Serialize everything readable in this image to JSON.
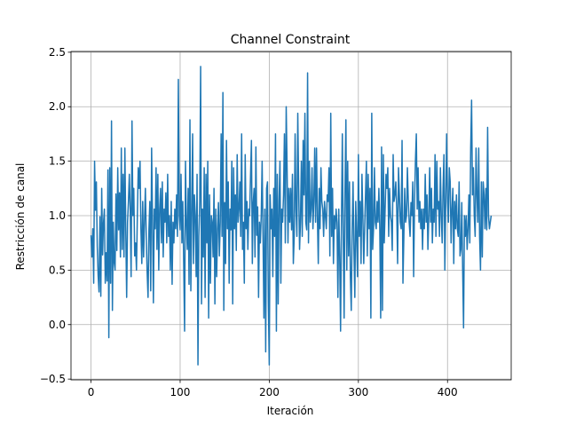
{
  "chart_data": {
    "type": "line",
    "title": "Channel Constraint",
    "x_label": "Iteración",
    "y_label": "Restricción de canal",
    "x": [
      0,
      1,
      2,
      3,
      4,
      5,
      6,
      7,
      8,
      9,
      10,
      11,
      12,
      13,
      14,
      15,
      16,
      17,
      18,
      19,
      20,
      21,
      22,
      23,
      24,
      25,
      26,
      27,
      28,
      29,
      30,
      31,
      32,
      33,
      34,
      35,
      36,
      37,
      38,
      39,
      40,
      41,
      42,
      43,
      44,
      45,
      46,
      47,
      48,
      49,
      50,
      51,
      52,
      53,
      54,
      55,
      56,
      57,
      58,
      59,
      60,
      61,
      62,
      63,
      64,
      65,
      66,
      67,
      68,
      69,
      70,
      71,
      72,
      73,
      74,
      75,
      76,
      77,
      78,
      79,
      80,
      81,
      82,
      83,
      84,
      85,
      86,
      87,
      88,
      89,
      90,
      91,
      92,
      93,
      94,
      95,
      96,
      97,
      98,
      99,
      100,
      101,
      102,
      103,
      104,
      105,
      106,
      107,
      108,
      109,
      110,
      111,
      112,
      113,
      114,
      115,
      116,
      117,
      118,
      119,
      120,
      121,
      122,
      123,
      124,
      125,
      126,
      127,
      128,
      129,
      130,
      131,
      132,
      133,
      134,
      135,
      136,
      137,
      138,
      139,
      140,
      141,
      142,
      143,
      144,
      145,
      146,
      147,
      148,
      149,
      150,
      151,
      152,
      153,
      154,
      155,
      156,
      157,
      158,
      159,
      160,
      161,
      162,
      163,
      164,
      165,
      166,
      167,
      168,
      169,
      170,
      171,
      172,
      173,
      174,
      175,
      176,
      177,
      178,
      179,
      180,
      181,
      182,
      183,
      184,
      185,
      186,
      187,
      188,
      189,
      190,
      191,
      192,
      193,
      194,
      195,
      196,
      197,
      198,
      199,
      200,
      201,
      202,
      203,
      204,
      205,
      206,
      207,
      208,
      209,
      210,
      211,
      212,
      213,
      214,
      215,
      216,
      217,
      218,
      219,
      220,
      221,
      222,
      223,
      224,
      225,
      226,
      227,
      228,
      229,
      230,
      231,
      232,
      233,
      234,
      235,
      236,
      237,
      238,
      239,
      240,
      241,
      242,
      243,
      244,
      245,
      246,
      247,
      248,
      249,
      250,
      251,
      252,
      253,
      254,
      255,
      256,
      257,
      258,
      259,
      260,
      261,
      262,
      263,
      264,
      265,
      266,
      267,
      268,
      269,
      270,
      271,
      272,
      273,
      274,
      275,
      276,
      277,
      278,
      279,
      280,
      281,
      282,
      283,
      284,
      285,
      286,
      287,
      288,
      289,
      290,
      291,
      292,
      293,
      294,
      295,
      296,
      297,
      298,
      299,
      300,
      301,
      302,
      303,
      304,
      305,
      306,
      307,
      308,
      309,
      310,
      311,
      312,
      313,
      314,
      315,
      316,
      317,
      318,
      319,
      320,
      321,
      322,
      323,
      324,
      325,
      326,
      327,
      328,
      329,
      330,
      331,
      332,
      333,
      334,
      335,
      336,
      337,
      338,
      339,
      340,
      341,
      342,
      343,
      344,
      345,
      346,
      347,
      348,
      349,
      350,
      351,
      352,
      353,
      354,
      355,
      356,
      357,
      358,
      359,
      360,
      361,
      362,
      363,
      364,
      365,
      366,
      367,
      368,
      369,
      370,
      371,
      372,
      373,
      374,
      375,
      376,
      377,
      378,
      379,
      380,
      381,
      382,
      383,
      384,
      385,
      386,
      387,
      388,
      389,
      390,
      391,
      392,
      393,
      394,
      395,
      396,
      397,
      398,
      399,
      400,
      401,
      402,
      403,
      404,
      405,
      406,
      407,
      408,
      409,
      410,
      411,
      412,
      413,
      414,
      415,
      416,
      417,
      418,
      419,
      420,
      421,
      422,
      423,
      424,
      425,
      426,
      427,
      428,
      429,
      430,
      431,
      432,
      433,
      434,
      435,
      436,
      437,
      438,
      439,
      440,
      441,
      442,
      443,
      444,
      445,
      446,
      447,
      448,
      449
    ],
    "values": [
      0.82,
      0.62,
      0.88,
      0.38,
      1.5,
      1.05,
      1.31,
      0.72,
      0.45,
      0.3,
      0.99,
      0.26,
      1.25,
      0.64,
      0.93,
      1.06,
      0.38,
      0.66,
      0.4,
      1.42,
      -0.12,
      1.44,
      0.38,
      1.87,
      0.13,
      0.94,
      0.57,
      0.5,
      1.2,
      0.68,
      1.44,
      0.87,
      1.21,
      0.62,
      1.62,
      0.69,
      1.38,
      0.62,
      1.62,
      0.87,
      0.25,
      0.94,
      1.13,
      1.38,
      1.05,
      0.44,
      1.87,
      1.0,
      1.25,
      0.63,
      0.75,
      0.5,
      1.0,
      1.44,
      1.25,
      1.5,
      0.88,
      0.56,
      1.13,
      0.62,
      0.94,
      1.25,
      0.81,
      0.48,
      0.25,
      0.87,
      1.13,
      0.31,
      1.62,
      0.98,
      0.2,
      1.06,
      0.88,
      1.44,
      0.69,
      1.38,
      0.5,
      1.06,
      1.25,
      0.75,
      1.31,
      0.62,
      1.06,
      0.94,
      1.21,
      0.75,
      1.38,
      0.81,
      1.0,
      0.5,
      1.13,
      0.37,
      0.94,
      0.75,
      1.06,
      0.88,
      1.19,
      0.81,
      2.25,
      1.0,
      0.87,
      1.38,
      0.75,
      1.13,
      0.56,
      -0.06,
      1.5,
      0.94,
      0.69,
      1.25,
      0.37,
      1.88,
      0.31,
      1.0,
      1.75,
      0.56,
      1.19,
      1.0,
      0.44,
      1.38,
      -0.37,
      0.81,
      1.13,
      2.37,
      0.19,
      1.06,
      0.62,
      1.44,
      0.25,
      1.38,
      0.75,
      1.5,
      0.06,
      1.19,
      0.38,
      1.0,
      0.94,
      0.62,
      1.25,
      0.19,
      1.06,
      0.44,
      0.88,
      1.12,
      0.63,
      0.94,
      1.75,
      0.81,
      2.13,
      0.13,
      1.12,
      0.56,
      1.69,
      0.88,
      1.31,
      0.38,
      1.06,
      0.87,
      1.5,
      0.19,
      1.44,
      0.88,
      1.19,
      0.68,
      1.56,
      0.94,
      1.06,
      1.31,
      0.81,
      1.75,
      0.69,
      0.94,
      0.38,
      1.56,
      0.88,
      1.13,
      0.69,
      1.06,
      1.0,
      1.37,
      1.69,
      0.56,
      1.12,
      1.25,
      0.62,
      1.63,
      0.82,
      1.08,
      0.25,
      0.94,
      0.75,
      1.0,
      1.5,
      0.81,
      0.06,
      1.06,
      -0.25,
      1.25,
      1.31,
      0.19,
      -0.37,
      1.19,
      0.88,
      1.06,
      0.44,
      1.25,
      0.81,
      1.75,
      -0.06,
      1.38,
      0.19,
      1.13,
      1.5,
      0.38,
      1.06,
      0.94,
      1.19,
      1.75,
      0.75,
      2.0,
      1.44,
      0.75,
      1.25,
      0.94,
      1.25,
      0.87,
      1.38,
      0.56,
      0.81,
      1.75,
      1.06,
      0.81,
      1.94,
      1.25,
      0.69,
      0.94,
      1.5,
      0.81,
      1.69,
      1.19,
      1.94,
      0.94,
      0.87,
      2.31,
      0.75,
      1.5,
      0.94,
      1.06,
      1.44,
      0.88,
      1.13,
      1.62,
      0.94,
      1.62,
      1.0,
      0.56,
      1.25,
      0.88,
      1.44,
      1.13,
      1.06,
      0.81,
      1.13,
      1.0,
      0.88,
      1.19,
      1.13,
      1.44,
      0.63,
      1.94,
      0.81,
      1.25,
      0.56,
      1.0,
      0.88,
      1.06,
      0.94,
      0.25,
      1.06,
      0.63,
      -0.06,
      0.94,
      1.75,
      0.81,
      0.06,
      1.25,
      1.88,
      0.5,
      1.5,
      0.63,
      1.31,
      0.44,
      0.13,
      0.87,
      1.31,
      0.69,
      0.25,
      1.13,
      0.81,
      0.44,
      1.56,
      0.81,
      1.13,
      0.56,
      1.38,
      1.0,
      0.56,
      0.87,
      1.19,
      1.5,
      0.63,
      1.38,
      0.88,
      1.25,
      0.06,
      1.94,
      0.69,
      0.88,
      1.44,
      0.94,
      0.88,
      1.13,
      0.94,
      1.25,
      0.88,
      0.06,
      1.63,
      0.13,
      1.56,
      0.75,
      1.06,
      1.38,
      1.25,
      1.44,
      0.81,
      1.25,
      1.0,
      0.94,
      0.68,
      1.56,
      1.13,
      1.19,
      1.31,
      1.06,
      0.56,
      1.44,
      1.19,
      0.94,
      0.88,
      1.69,
      0.38,
      0.81,
      1.25,
      0.94,
      1.0,
      1.44,
      1.13,
      0.94,
      0.81,
      1.12,
      1.0,
      1.31,
      0.44,
      1.13,
      1.5,
      1.75,
      1.06,
      1.44,
      0.94,
      1.13,
      0.88,
      1.06,
      0.69,
      1.06,
      0.88,
      1.38,
      0.94,
      1.19,
      0.69,
      1.0,
      1.44,
      0.94,
      1.25,
      0.75,
      1.06,
      0.94,
      1.56,
      0.81,
      1.5,
      1.06,
      1.13,
      0.81,
      1.44,
      1.0,
      0.75,
      1.25,
      1.56,
      0.5,
      1.13,
      1.75,
      1.13,
      0.94,
      1.44,
      1.31,
      0.75,
      1.06,
      1.25,
      0.56,
      1.13,
      0.88,
      1.19,
      0.88,
      0.81,
      1.31,
      0.63,
      0.69,
      1.12,
      0.5,
      -0.03,
      1.0,
      0.81,
      1.0,
      0.69,
      0.88,
      1.19,
      0.75,
      1.62,
      2.06,
      1.19,
      1.44,
      1.0,
      0.81,
      1.62,
      1.19,
      0.94,
      1.62,
      0.81,
      0.5,
      1.31,
      0.62,
      1.31,
      1.19,
      0.88,
      1.25,
      0.87,
      1.81,
      1.0,
      0.88,
      0.94,
      1.0
    ],
    "color": "#1f77b4",
    "xlim": [
      -22.45,
      471.45
    ],
    "ylim": [
      -0.507,
      2.507
    ],
    "xticks": [
      0,
      100,
      200,
      300,
      400
    ],
    "yticks": [
      {
        "value": -0.5,
        "label": "−0.5"
      },
      {
        "value": 0,
        "label": "0.0"
      },
      0.5,
      {
        "value": 1,
        "label": "1.0"
      },
      1.5,
      {
        "value": 2,
        "label": "2.0"
      },
      2.5
    ],
    "grid": true
  }
}
